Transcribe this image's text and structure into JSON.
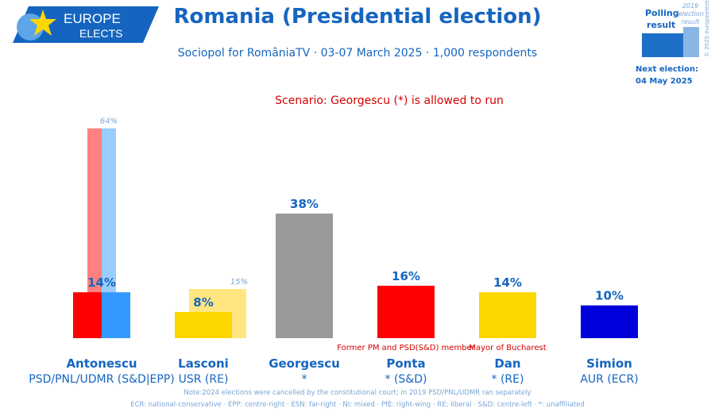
{
  "brand": {
    "line1": "EUROPE",
    "line2": "ELECTS"
  },
  "header": {
    "title": "Romania (Presidential election)",
    "subtitle": "Sociopol for RomâniaTV · 03-07 March 2025 · 1,000 respondents",
    "scenario": "Scenario: Georgescu (*) is allowed to run"
  },
  "legend": {
    "polling_label_1": "Polling",
    "polling_label_2": "result",
    "previous_label_1": "2019",
    "previous_label_2": "election",
    "previous_label_3": "result",
    "copyright": "© 2025 europeelects",
    "next_election_label": "Next election:",
    "next_election_date": "04 May 2025"
  },
  "colors": {
    "title_blue": "#1565c0",
    "light_blue_text": "#7aa6d6",
    "annotation_red": "#d50000"
  },
  "chart_data": {
    "type": "bar",
    "ylim": [
      0,
      70
    ],
    "candidates": [
      {
        "name": "Antonescu",
        "party": "PSD/PNL/UDMR (S&D|EPP)",
        "value": 14,
        "value_label": "14%",
        "previous": 64,
        "previous_label": "64%",
        "annotation": "",
        "colors": [
          "#ff0000",
          "#3399ff"
        ],
        "previous_colors": [
          "#ff8080",
          "#99ccff"
        ]
      },
      {
        "name": "Lasconi",
        "party": "USR (RE)",
        "value": 8,
        "value_label": "8%",
        "previous": 15,
        "previous_label": "15%",
        "annotation": "",
        "colors": [
          "#ffd700"
        ],
        "previous_colors": [
          "#ffe680"
        ]
      },
      {
        "name": "Georgescu",
        "party": "*",
        "value": 38,
        "value_label": "38%",
        "previous": null,
        "previous_label": "",
        "annotation": "",
        "colors": [
          "#999999"
        ],
        "previous_colors": []
      },
      {
        "name": "Ponta",
        "party": "* (S&D)",
        "value": 16,
        "value_label": "16%",
        "previous": null,
        "previous_label": "",
        "annotation": "Former PM and PSD(S&D) member",
        "colors": [
          "#ff0000"
        ],
        "previous_colors": []
      },
      {
        "name": "Dan",
        "party": "* (RE)",
        "value": 14,
        "value_label": "14%",
        "previous": null,
        "previous_label": "",
        "annotation": "Mayor of Bucharest",
        "colors": [
          "#ffd700"
        ],
        "previous_colors": []
      },
      {
        "name": "Simion",
        "party": "AUR (ECR)",
        "value": 10,
        "value_label": "10%",
        "previous": null,
        "previous_label": "",
        "annotation": "",
        "colors": [
          "#0000dd"
        ],
        "previous_colors": []
      }
    ]
  },
  "notes": {
    "line1": "Note:2024 elections were cancelled by the constitutional court; in 2019 PSD/PNL/UDMR ran separately",
    "line2": "ECR: national-conservative · EPP: centre-right · ESN: far-right · NI: mixed · PfE: right-wing · RE: liberal · S&D: centre-left · *: unaffiliated"
  }
}
